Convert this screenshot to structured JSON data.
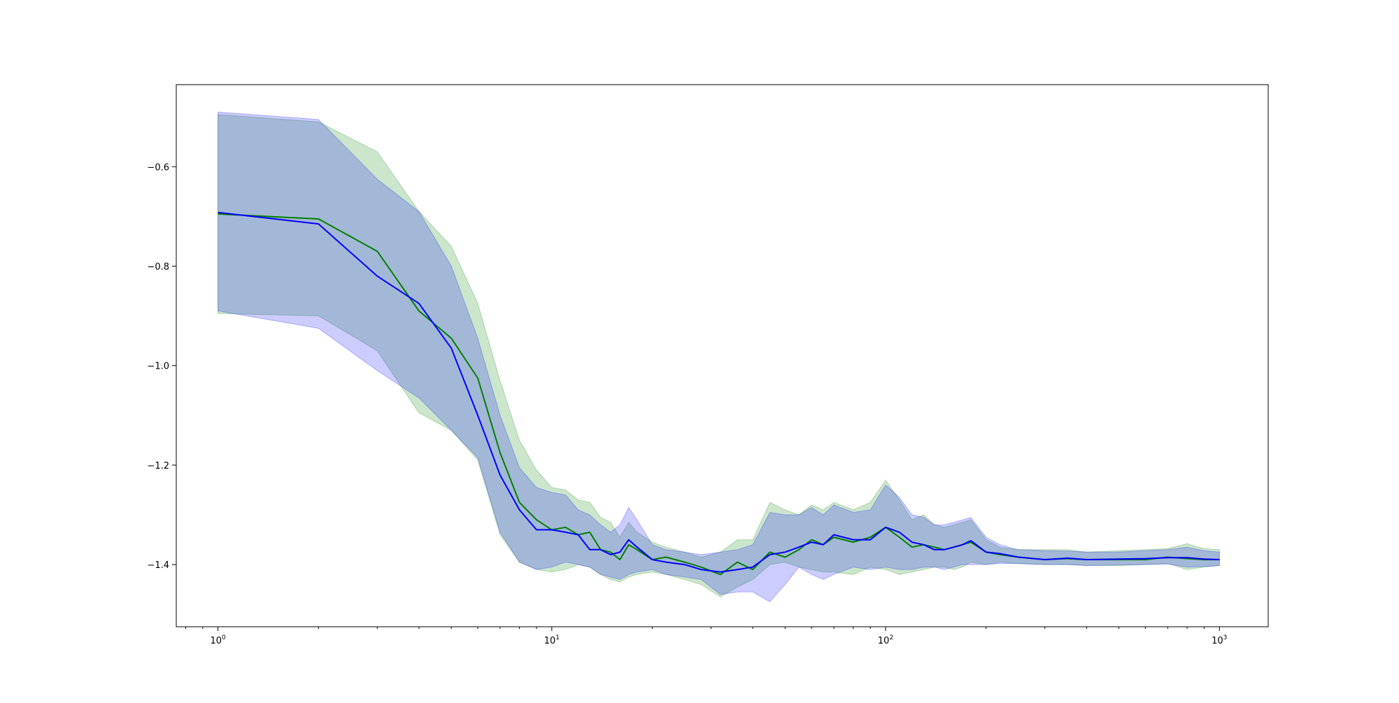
{
  "chart_data": {
    "type": "line",
    "xscale": "log",
    "xlim": [
      0.75,
      1400
    ],
    "ylim": [
      -1.525,
      -0.435
    ],
    "grid": false,
    "legend": "none",
    "title": "",
    "xlabel": "",
    "ylabel": "",
    "x_ticks": [
      {
        "value": 1,
        "base": "10",
        "exp": "0"
      },
      {
        "value": 10,
        "base": "10",
        "exp": "1"
      },
      {
        "value": 100,
        "base": "10",
        "exp": "2"
      },
      {
        "value": 1000,
        "base": "10",
        "exp": "3"
      }
    ],
    "y_ticks": [
      {
        "value": -0.6,
        "label": "−0.6"
      },
      {
        "value": -0.8,
        "label": "−0.8"
      },
      {
        "value": -1.0,
        "label": "−1.0"
      },
      {
        "value": -1.2,
        "label": "−1.2"
      },
      {
        "value": -1.4,
        "label": "−1.4"
      }
    ],
    "series": [
      {
        "color": "#008000",
        "band_color": "#008000",
        "x": [
          1,
          2,
          3,
          4,
          5,
          6,
          7,
          8,
          9,
          10,
          11,
          12,
          13,
          14,
          15,
          16,
          17,
          18,
          20,
          22,
          25,
          28,
          32,
          36,
          40,
          45,
          50,
          55,
          60,
          65,
          70,
          80,
          90,
          100,
          110,
          120,
          130,
          140,
          150,
          160,
          170,
          180,
          200,
          220,
          250,
          300,
          350,
          400,
          500,
          600,
          700,
          800,
          900,
          1000
        ],
        "y": [
          -0.695,
          -0.705,
          -0.77,
          -0.89,
          -0.945,
          -1.025,
          -1.175,
          -1.275,
          -1.31,
          -1.33,
          -1.325,
          -1.34,
          -1.335,
          -1.37,
          -1.375,
          -1.39,
          -1.36,
          -1.37,
          -1.39,
          -1.385,
          -1.395,
          -1.405,
          -1.42,
          -1.395,
          -1.41,
          -1.375,
          -1.385,
          -1.37,
          -1.35,
          -1.36,
          -1.345,
          -1.355,
          -1.345,
          -1.325,
          -1.345,
          -1.365,
          -1.36,
          -1.365,
          -1.37,
          -1.365,
          -1.36,
          -1.355,
          -1.375,
          -1.38,
          -1.385,
          -1.39,
          -1.388,
          -1.39,
          -1.39,
          -1.39,
          -1.385,
          -1.388,
          -1.39,
          -1.39
        ],
        "lower": [
          -0.895,
          -0.9,
          -0.97,
          -1.095,
          -1.13,
          -1.19,
          -1.34,
          -1.395,
          -1.41,
          -1.415,
          -1.41,
          -1.4,
          -1.405,
          -1.42,
          -1.43,
          -1.435,
          -1.425,
          -1.42,
          -1.415,
          -1.42,
          -1.43,
          -1.44,
          -1.465,
          -1.445,
          -1.43,
          -1.4,
          -1.395,
          -1.405,
          -1.41,
          -1.415,
          -1.415,
          -1.42,
          -1.405,
          -1.41,
          -1.42,
          -1.415,
          -1.41,
          -1.405,
          -1.405,
          -1.41,
          -1.405,
          -1.395,
          -1.4,
          -1.395,
          -1.398,
          -1.4,
          -1.4,
          -1.402,
          -1.402,
          -1.4,
          -1.398,
          -1.41,
          -1.405,
          -1.402
        ],
        "upper": [
          -0.495,
          -0.51,
          -0.57,
          -0.69,
          -0.76,
          -0.875,
          -1.03,
          -1.15,
          -1.21,
          -1.245,
          -1.25,
          -1.27,
          -1.275,
          -1.305,
          -1.315,
          -1.345,
          -1.315,
          -1.335,
          -1.355,
          -1.365,
          -1.375,
          -1.385,
          -1.375,
          -1.35,
          -1.35,
          -1.275,
          -1.29,
          -1.3,
          -1.28,
          -1.29,
          -1.275,
          -1.29,
          -1.275,
          -1.23,
          -1.27,
          -1.31,
          -1.3,
          -1.32,
          -1.325,
          -1.32,
          -1.315,
          -1.31,
          -1.35,
          -1.365,
          -1.37,
          -1.37,
          -1.37,
          -1.375,
          -1.372,
          -1.37,
          -1.368,
          -1.358,
          -1.368,
          -1.37
        ]
      },
      {
        "color": "#0000ff",
        "band_color": "#0000ff",
        "x": [
          1,
          2,
          3,
          4,
          5,
          6,
          7,
          8,
          9,
          10,
          11,
          12,
          13,
          14,
          15,
          16,
          17,
          18,
          20,
          22,
          25,
          28,
          32,
          36,
          40,
          45,
          50,
          55,
          60,
          65,
          70,
          80,
          90,
          100,
          110,
          120,
          130,
          140,
          150,
          160,
          170,
          180,
          200,
          220,
          250,
          300,
          350,
          400,
          500,
          600,
          700,
          800,
          900,
          1000
        ],
        "y": [
          -0.692,
          -0.715,
          -0.82,
          -0.875,
          -0.965,
          -1.1,
          -1.22,
          -1.29,
          -1.33,
          -1.33,
          -1.335,
          -1.34,
          -1.37,
          -1.37,
          -1.38,
          -1.375,
          -1.35,
          -1.365,
          -1.39,
          -1.395,
          -1.4,
          -1.41,
          -1.415,
          -1.41,
          -1.405,
          -1.38,
          -1.375,
          -1.365,
          -1.355,
          -1.36,
          -1.34,
          -1.35,
          -1.35,
          -1.325,
          -1.335,
          -1.355,
          -1.36,
          -1.37,
          -1.37,
          -1.365,
          -1.36,
          -1.352,
          -1.375,
          -1.378,
          -1.385,
          -1.39,
          -1.387,
          -1.39,
          -1.389,
          -1.388,
          -1.386,
          -1.386,
          -1.389,
          -1.39
        ],
        "lower": [
          -0.89,
          -0.925,
          -1.01,
          -1.065,
          -1.13,
          -1.185,
          -1.335,
          -1.395,
          -1.41,
          -1.405,
          -1.395,
          -1.4,
          -1.405,
          -1.42,
          -1.425,
          -1.43,
          -1.42,
          -1.415,
          -1.41,
          -1.42,
          -1.425,
          -1.43,
          -1.46,
          -1.455,
          -1.455,
          -1.475,
          -1.44,
          -1.405,
          -1.42,
          -1.43,
          -1.42,
          -1.405,
          -1.41,
          -1.405,
          -1.41,
          -1.41,
          -1.405,
          -1.405,
          -1.41,
          -1.405,
          -1.4,
          -1.4,
          -1.4,
          -1.398,
          -1.398,
          -1.4,
          -1.4,
          -1.402,
          -1.401,
          -1.4,
          -1.399,
          -1.405,
          -1.404,
          -1.402
        ],
        "upper": [
          -0.49,
          -0.505,
          -0.625,
          -0.69,
          -0.8,
          -0.945,
          -1.1,
          -1.205,
          -1.245,
          -1.255,
          -1.26,
          -1.29,
          -1.3,
          -1.32,
          -1.335,
          -1.32,
          -1.285,
          -1.31,
          -1.36,
          -1.37,
          -1.375,
          -1.38,
          -1.375,
          -1.37,
          -1.36,
          -1.295,
          -1.3,
          -1.3,
          -1.285,
          -1.3,
          -1.28,
          -1.295,
          -1.29,
          -1.24,
          -1.265,
          -1.3,
          -1.305,
          -1.32,
          -1.32,
          -1.315,
          -1.31,
          -1.305,
          -1.345,
          -1.36,
          -1.37,
          -1.372,
          -1.373,
          -1.375,
          -1.375,
          -1.372,
          -1.37,
          -1.365,
          -1.372,
          -1.375
        ]
      }
    ]
  }
}
